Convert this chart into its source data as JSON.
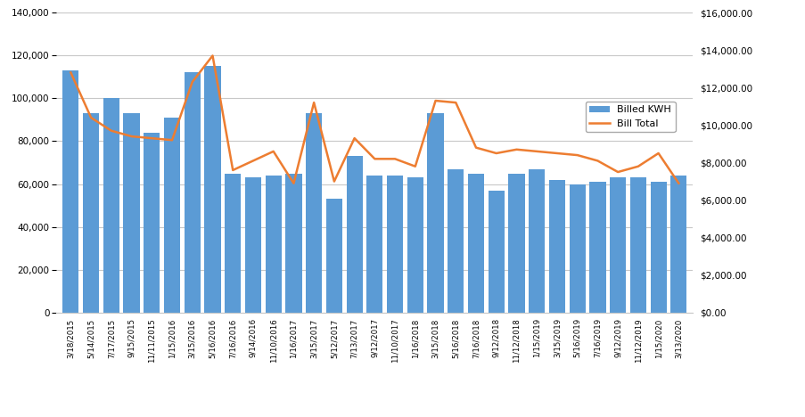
{
  "categories": [
    "3/18/2015",
    "5/14/2015",
    "7/17/2015",
    "9/15/2015",
    "11/11/2015",
    "1/15/2016",
    "3/15/2016",
    "5/16/2016",
    "7/16/2016",
    "9/14/2016",
    "11/10/2016",
    "1/16/2017",
    "3/15/2017",
    "5/12/2017",
    "7/13/2017",
    "9/12/2017",
    "11/10/2017",
    "1/16/2018",
    "3/15/2018",
    "5/16/2018",
    "7/16/2018",
    "9/12/2018",
    "11/12/2018",
    "1/15/2019",
    "3/15/2019",
    "5/16/2019",
    "7/16/2019",
    "9/12/2019",
    "11/12/2019",
    "1/15/2020",
    "3/13/2020"
  ],
  "billed_kwh": [
    113000,
    93000,
    100000,
    93000,
    84000,
    91000,
    112000,
    115000,
    65000,
    63000,
    64000,
    65000,
    93000,
    53000,
    73000,
    64000,
    64000,
    63000,
    93000,
    67000,
    65000,
    57000,
    65000,
    67000,
    62000,
    60000,
    61000,
    63000,
    63000,
    61000,
    64000
  ],
  "bill_total": [
    12800,
    10400,
    9700,
    9400,
    9300,
    9200,
    12300,
    13700,
    7600,
    8100,
    8600,
    6900,
    11200,
    7000,
    9300,
    8200,
    8200,
    7800,
    11300,
    11200,
    8800,
    8500,
    8700,
    8600,
    8500,
    8400,
    8100,
    7500,
    7800,
    8500,
    6900
  ],
  "bar_color": "#5B9BD5",
  "line_color": "#ED7D31",
  "bar_label": "Billed KWH",
  "line_label": "Bill Total",
  "ylim_left": [
    0,
    140000
  ],
  "ylim_right": [
    0,
    16000
  ],
  "yticks_left": [
    0,
    20000,
    40000,
    60000,
    80000,
    100000,
    120000,
    140000
  ],
  "yticks_right": [
    0,
    2000,
    4000,
    6000,
    8000,
    10000,
    12000,
    14000,
    16000
  ],
  "background_color": "#ffffff",
  "grid_color": "#c8c8c8",
  "plot_bg": "#f2f2f2"
}
